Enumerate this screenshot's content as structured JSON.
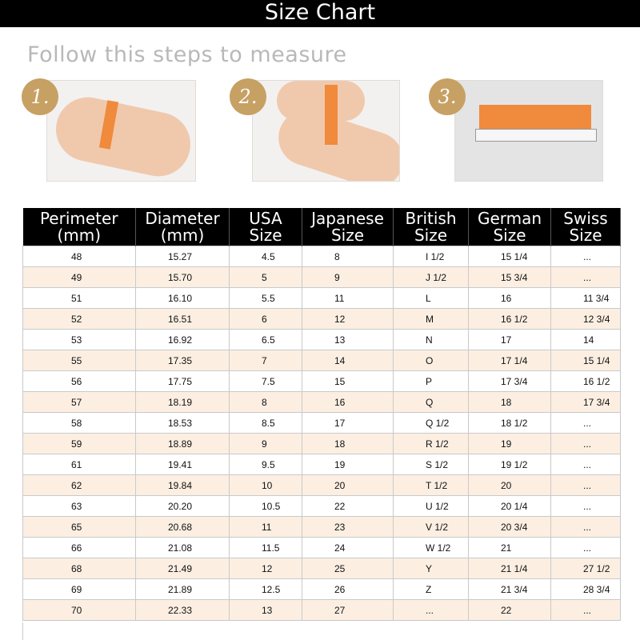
{
  "title": "Size Chart",
  "subtitle": "Follow this steps to measure",
  "steps": [
    "1.",
    "2.",
    "3."
  ],
  "colors": {
    "accent_gold": "#c7a064",
    "row_alt": "#fcefe2",
    "header_bg": "#000000",
    "tape": "#f08a3c"
  },
  "table": {
    "headers": [
      [
        "Perimeter",
        "(mm)"
      ],
      [
        "Diameter",
        "(mm)"
      ],
      [
        "USA",
        "Size"
      ],
      [
        "Japanese",
        "Size"
      ],
      [
        "British",
        "Size"
      ],
      [
        "German",
        "Size"
      ],
      [
        "Swiss",
        "Size"
      ]
    ],
    "rows": [
      [
        "48",
        "15.27",
        "4.5",
        "8",
        "I 1/2",
        "15 1/4",
        "..."
      ],
      [
        "49",
        "15.70",
        "5",
        "9",
        "J 1/2",
        "15 3/4",
        "..."
      ],
      [
        "51",
        "16.10",
        "5.5",
        "11",
        "L",
        "16",
        "11 3/4"
      ],
      [
        "52",
        "16.51",
        "6",
        "12",
        "M",
        "16 1/2",
        "12 3/4"
      ],
      [
        "53",
        "16.92",
        "6.5",
        "13",
        "N",
        "17",
        "14"
      ],
      [
        "55",
        "17.35",
        "7",
        "14",
        "O",
        "17 1/4",
        "15 1/4"
      ],
      [
        "56",
        "17.75",
        "7.5",
        "15",
        "P",
        "17 3/4",
        "16 1/2"
      ],
      [
        "57",
        "18.19",
        "8",
        "16",
        "Q",
        "18",
        "17 3/4"
      ],
      [
        "58",
        "18.53",
        "8.5",
        "17",
        "Q 1/2",
        "18 1/2",
        "..."
      ],
      [
        "59",
        "18.89",
        "9",
        "18",
        "R 1/2",
        "19",
        "..."
      ],
      [
        "61",
        "19.41",
        "9.5",
        "19",
        "S 1/2",
        "19 1/2",
        "..."
      ],
      [
        "62",
        "19.84",
        "10",
        "20",
        "T 1/2",
        "20",
        "..."
      ],
      [
        "63",
        "20.20",
        "10.5",
        "22",
        "U 1/2",
        "20 1/4",
        "..."
      ],
      [
        "65",
        "20.68",
        "11",
        "23",
        "V 1/2",
        "20 3/4",
        "..."
      ],
      [
        "66",
        "21.08",
        "11.5",
        "24",
        "W 1/2",
        "21",
        "..."
      ],
      [
        "68",
        "21.49",
        "12",
        "25",
        "Y",
        "21 1/4",
        "27 1/2"
      ],
      [
        "69",
        "21.89",
        "12.5",
        "26",
        "Z",
        "21 3/4",
        "28 3/4"
      ],
      [
        "70",
        "22.33",
        "13",
        "27",
        "...",
        "22",
        "..."
      ]
    ]
  }
}
